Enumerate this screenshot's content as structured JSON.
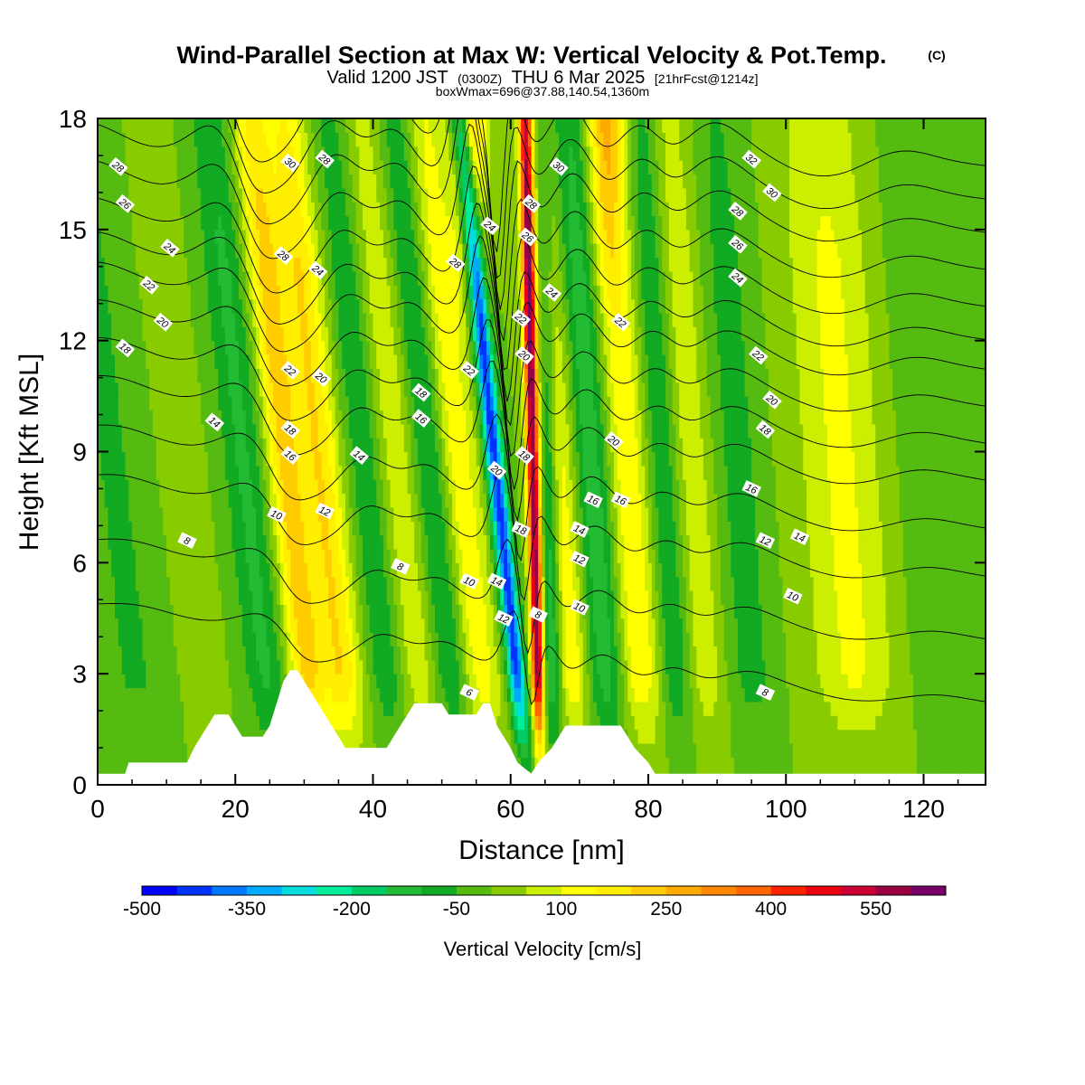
{
  "chart_data": {
    "type": "heatmap",
    "title": "Wind-Parallel Section at Max W: Vertical Velocity & Pot.Temp.",
    "title_mark": "(C)",
    "subtitle": {
      "valid": "Valid 1200 JST",
      "utc": "(0300Z)",
      "date": "THU 6 Mar 2025",
      "fcst": "[21hrFcst@1214z]"
    },
    "box_info": "boxWmax=696@37.88,140.54,1360m",
    "xlabel": "Distance [nm]",
    "ylabel": "Height [Kft MSL]",
    "xlim": [
      0,
      129
    ],
    "ylim": [
      0,
      18
    ],
    "x_ticks": [
      "0",
      "20",
      "40",
      "60",
      "80",
      "100",
      "120"
    ],
    "y_ticks": [
      "0",
      "3",
      "6",
      "9",
      "12",
      "15",
      "18"
    ],
    "colorbar": {
      "label": "Vertical Velocity [cm/s]",
      "tick_labels": [
        "-500",
        "-350",
        "-200",
        "-50",
        "100",
        "250",
        "400",
        "550"
      ],
      "range": [
        -500,
        650
      ],
      "step": 50,
      "colors": [
        "#0000ff",
        "#0033ff",
        "#0077ff",
        "#00aaff",
        "#00dddd",
        "#00ee99",
        "#00cc66",
        "#22bb33",
        "#11aa22",
        "#55bb11",
        "#88cc00",
        "#ccee00",
        "#ffff00",
        "#ffee00",
        "#ffcc00",
        "#ffaa00",
        "#ff8800",
        "#ff6600",
        "#ff2200",
        "#ee0011",
        "#cc0033",
        "#990044",
        "#770066"
      ]
    },
    "w_features": [
      {
        "x": 3,
        "w": 4,
        "value": -60
      },
      {
        "x": 9,
        "w": 3,
        "value": 0
      },
      {
        "x": 13,
        "w": 3,
        "value": 20
      },
      {
        "x": 22,
        "w": 3,
        "value": -110
      },
      {
        "x": 28,
        "w": 2.5,
        "value": 220
      },
      {
        "x": 33,
        "w": 3,
        "value": 200
      },
      {
        "x": 40,
        "w": 3,
        "value": -120
      },
      {
        "x": 44,
        "w": 4,
        "value": 110
      },
      {
        "x": 49,
        "w": 3,
        "value": -140
      },
      {
        "x": 53,
        "w": 3,
        "value": 150
      },
      {
        "x": 58.5,
        "w": 1.3,
        "value": -430
      },
      {
        "x": 61.3,
        "w": 0.9,
        "value": 600
      },
      {
        "x": 63.5,
        "w": 1.5,
        "value": -180
      },
      {
        "x": 67,
        "w": 2.5,
        "value": 150
      },
      {
        "x": 72,
        "w": 3,
        "value": -150
      },
      {
        "x": 77,
        "w": 3.5,
        "value": 160
      },
      {
        "x": 82,
        "w": 3,
        "value": -120
      },
      {
        "x": 86,
        "w": 3,
        "value": 100
      },
      {
        "x": 93,
        "w": 3.5,
        "value": -70
      },
      {
        "x": 108,
        "w": 6,
        "value": 110
      },
      {
        "x": 120,
        "w": 4,
        "value": -40
      }
    ],
    "w_top_features": [
      {
        "x": 54,
        "w": 2.5,
        "value": 250
      },
      {
        "x": 74,
        "w": 2.5,
        "value": 170
      }
    ],
    "theta_levels": [
      {
        "label": "6",
        "h": 3.6
      },
      {
        "label": "8",
        "h": 5.3
      },
      {
        "label": "10",
        "h": 7.0
      },
      {
        "label": "12",
        "h": 8.3
      },
      {
        "label": "14",
        "h": 9.6
      },
      {
        "label": "16",
        "h": 10.6
      },
      {
        "label": "18",
        "h": 11.6
      },
      {
        "label": "20",
        "h": 12.6
      },
      {
        "label": "22",
        "h": 13.4
      },
      {
        "label": "24",
        "h": 14.3
      },
      {
        "label": "26",
        "h": 15.3
      },
      {
        "label": "28",
        "h": 16.3
      },
      {
        "label": "30",
        "h": 17.2
      },
      {
        "label": "32",
        "h": 18.1
      }
    ],
    "contour_labels": [
      {
        "text": "28",
        "x": 3,
        "y": 16.7
      },
      {
        "text": "26",
        "x": 4,
        "y": 15.7
      },
      {
        "text": "24",
        "x": 10.5,
        "y": 14.5
      },
      {
        "text": "22",
        "x": 7.5,
        "y": 13.5
      },
      {
        "text": "20",
        "x": 9.5,
        "y": 12.5
      },
      {
        "text": "18",
        "x": 4,
        "y": 11.8
      },
      {
        "text": "14",
        "x": 17,
        "y": 9.8
      },
      {
        "text": "10",
        "x": 26,
        "y": 7.3
      },
      {
        "text": "8",
        "x": 13,
        "y": 6.6
      },
      {
        "text": "30",
        "x": 28,
        "y": 16.8
      },
      {
        "text": "28",
        "x": 33,
        "y": 16.9
      },
      {
        "text": "28",
        "x": 27,
        "y": 14.3
      },
      {
        "text": "24",
        "x": 32,
        "y": 13.9
      },
      {
        "text": "22",
        "x": 28,
        "y": 11.2
      },
      {
        "text": "20",
        "x": 32.5,
        "y": 11.0
      },
      {
        "text": "18",
        "x": 28,
        "y": 9.6
      },
      {
        "text": "16",
        "x": 28,
        "y": 8.9
      },
      {
        "text": "12",
        "x": 33,
        "y": 7.4
      },
      {
        "text": "14",
        "x": 38,
        "y": 8.9
      },
      {
        "text": "8",
        "x": 44,
        "y": 5.9
      },
      {
        "text": "18",
        "x": 47,
        "y": 10.6
      },
      {
        "text": "16",
        "x": 47,
        "y": 9.9
      },
      {
        "text": "28",
        "x": 52,
        "y": 14.1
      },
      {
        "text": "22",
        "x": 54,
        "y": 11.2
      },
      {
        "text": "24",
        "x": 57,
        "y": 15.1
      },
      {
        "text": "10",
        "x": 54,
        "y": 5.5
      },
      {
        "text": "6",
        "x": 54,
        "y": 2.5
      },
      {
        "text": "20",
        "x": 58,
        "y": 8.5
      },
      {
        "text": "14",
        "x": 58,
        "y": 5.5
      },
      {
        "text": "12",
        "x": 59,
        "y": 4.5
      },
      {
        "text": "30",
        "x": 67,
        "y": 16.7
      },
      {
        "text": "28",
        "x": 63,
        "y": 15.7
      },
      {
        "text": "26",
        "x": 62.5,
        "y": 14.8
      },
      {
        "text": "24",
        "x": 66,
        "y": 13.3
      },
      {
        "text": "22",
        "x": 61.5,
        "y": 12.6
      },
      {
        "text": "20",
        "x": 62,
        "y": 11.6
      },
      {
        "text": "18",
        "x": 62,
        "y": 8.9
      },
      {
        "text": "18",
        "x": 61.5,
        "y": 6.9
      },
      {
        "text": "8",
        "x": 64,
        "y": 4.6
      },
      {
        "text": "14",
        "x": 70,
        "y": 6.9
      },
      {
        "text": "12",
        "x": 70,
        "y": 6.1
      },
      {
        "text": "10",
        "x": 70,
        "y": 4.8
      },
      {
        "text": "16",
        "x": 72,
        "y": 7.7
      },
      {
        "text": "16",
        "x": 76,
        "y": 7.7
      },
      {
        "text": "20",
        "x": 75,
        "y": 9.3
      },
      {
        "text": "22",
        "x": 76,
        "y": 12.5
      },
      {
        "text": "32",
        "x": 95,
        "y": 16.9
      },
      {
        "text": "30",
        "x": 98,
        "y": 16.0
      },
      {
        "text": "28",
        "x": 93,
        "y": 15.5
      },
      {
        "text": "26",
        "x": 93,
        "y": 14.6
      },
      {
        "text": "24",
        "x": 93,
        "y": 13.7
      },
      {
        "text": "22",
        "x": 96,
        "y": 11.6
      },
      {
        "text": "20",
        "x": 98,
        "y": 10.4
      },
      {
        "text": "18",
        "x": 97,
        "y": 9.6
      },
      {
        "text": "16",
        "x": 95,
        "y": 8.0
      },
      {
        "text": "12",
        "x": 97,
        "y": 6.6
      },
      {
        "text": "14",
        "x": 102,
        "y": 6.7
      },
      {
        "text": "10",
        "x": 101,
        "y": 5.1
      },
      {
        "text": "8",
        "x": 97,
        "y": 2.5
      }
    ],
    "terrain": [
      {
        "x": 0,
        "h": 0.3
      },
      {
        "x": 4,
        "h": 0.3
      },
      {
        "x": 4.5,
        "h": 0.6
      },
      {
        "x": 13,
        "h": 0.6
      },
      {
        "x": 14,
        "h": 1.0
      },
      {
        "x": 15,
        "h": 1.3
      },
      {
        "x": 16,
        "h": 1.6
      },
      {
        "x": 17,
        "h": 1.9
      },
      {
        "x": 19,
        "h": 1.9
      },
      {
        "x": 20,
        "h": 1.6
      },
      {
        "x": 21,
        "h": 1.3
      },
      {
        "x": 24,
        "h": 1.3
      },
      {
        "x": 25,
        "h": 1.6
      },
      {
        "x": 26,
        "h": 2.2
      },
      {
        "x": 27,
        "h": 2.8
      },
      {
        "x": 28,
        "h": 3.1
      },
      {
        "x": 29,
        "h": 3.1
      },
      {
        "x": 30,
        "h": 2.8
      },
      {
        "x": 31,
        "h": 2.5
      },
      {
        "x": 32,
        "h": 2.2
      },
      {
        "x": 33,
        "h": 1.9
      },
      {
        "x": 34,
        "h": 1.6
      },
      {
        "x": 35,
        "h": 1.3
      },
      {
        "x": 36,
        "h": 1.0
      },
      {
        "x": 42,
        "h": 1.0
      },
      {
        "x": 43,
        "h": 1.3
      },
      {
        "x": 44,
        "h": 1.6
      },
      {
        "x": 45,
        "h": 1.9
      },
      {
        "x": 46,
        "h": 2.2
      },
      {
        "x": 50,
        "h": 2.2
      },
      {
        "x": 51,
        "h": 1.9
      },
      {
        "x": 55,
        "h": 1.9
      },
      {
        "x": 56,
        "h": 2.2
      },
      {
        "x": 57,
        "h": 2.2
      },
      {
        "x": 58,
        "h": 1.6
      },
      {
        "x": 59,
        "h": 1.3
      },
      {
        "x": 60,
        "h": 1.0
      },
      {
        "x": 61,
        "h": 0.6
      },
      {
        "x": 63,
        "h": 0.3
      },
      {
        "x": 64,
        "h": 0.6
      },
      {
        "x": 66,
        "h": 1.0
      },
      {
        "x": 67,
        "h": 1.3
      },
      {
        "x": 68,
        "h": 1.6
      },
      {
        "x": 76,
        "h": 1.6
      },
      {
        "x": 77,
        "h": 1.3
      },
      {
        "x": 78,
        "h": 1.0
      },
      {
        "x": 80,
        "h": 0.6
      },
      {
        "x": 81,
        "h": 0.3
      },
      {
        "x": 129,
        "h": 0.3
      }
    ]
  }
}
